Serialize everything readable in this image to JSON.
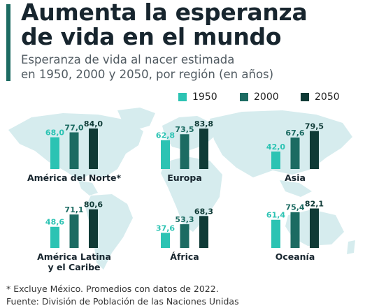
{
  "header": {
    "title_line1": "Aumenta la esperanza",
    "title_line2": "de vida en el mundo",
    "subtitle_line1": "Esperanza de vida al nacer estimada",
    "subtitle_line2": "en 1950, 2000 y 2050, por región (en años)"
  },
  "colors": {
    "accent": "#1c6b62",
    "map": "#d6ecee",
    "series": [
      "#2cc3b3",
      "#1c6b62",
      "#0f3a36"
    ]
  },
  "chart_data": {
    "type": "bar",
    "series_names": [
      "1950",
      "2000",
      "2050"
    ],
    "regions": [
      {
        "name": "América del Norte*",
        "name_lines": [
          "América del Norte*"
        ],
        "values": [
          68.0,
          77.0,
          84.0
        ],
        "value_labels": [
          "68,0",
          "77,0",
          "84,0"
        ]
      },
      {
        "name": "Europa",
        "name_lines": [
          "Europa"
        ],
        "values": [
          62.8,
          73.5,
          83.8
        ],
        "value_labels": [
          "62,8",
          "73,5",
          "83,8"
        ]
      },
      {
        "name": "Asia",
        "name_lines": [
          "Asia"
        ],
        "values": [
          42.0,
          67.6,
          79.5
        ],
        "value_labels": [
          "42,0",
          "67,6",
          "79,5"
        ]
      },
      {
        "name": "América Latina y el Caribe",
        "name_lines": [
          "América Latina",
          "y el Caribe"
        ],
        "values": [
          48.6,
          71.1,
          80.6
        ],
        "value_labels": [
          "48,6",
          "71,1",
          "80,6"
        ]
      },
      {
        "name": "África",
        "name_lines": [
          "África"
        ],
        "values": [
          37.6,
          53.3,
          68.3
        ],
        "value_labels": [
          "37,6",
          "53,3",
          "68,3"
        ]
      },
      {
        "name": "Oceanía",
        "name_lines": [
          "Oceanía"
        ],
        "values": [
          61.4,
          75.4,
          82.1
        ],
        "value_labels": [
          "61,4",
          "75,4",
          "82,1"
        ]
      }
    ]
  },
  "footer": {
    "footnote": "* Excluye México. Promedios con datos de 2022.",
    "source": "Fuente: División de Población de las Naciones Unidas"
  }
}
